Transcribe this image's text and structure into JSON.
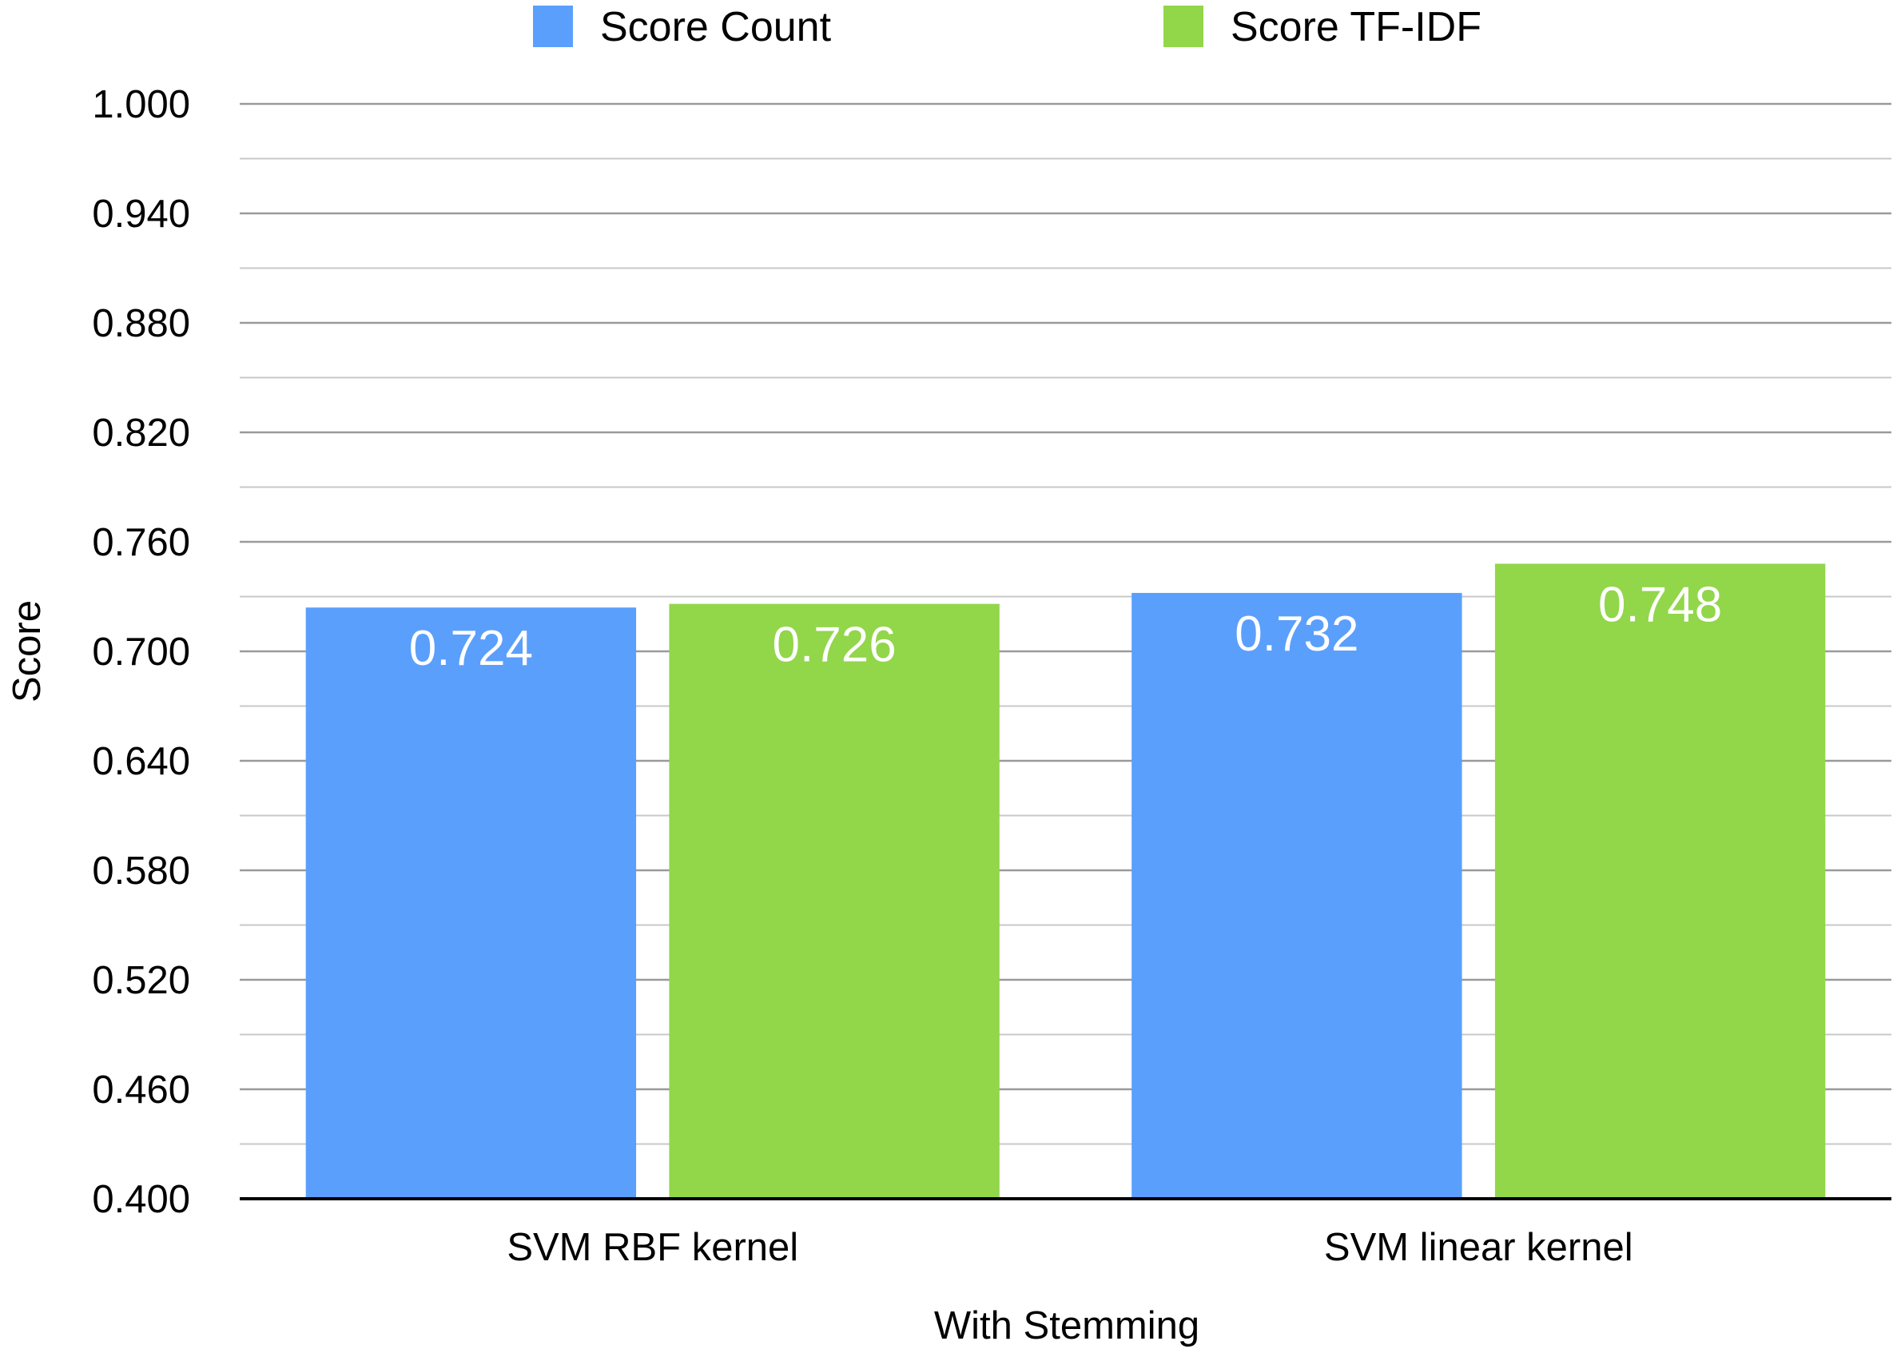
{
  "chart_data": {
    "type": "bar",
    "xlabel": "With Stemming",
    "ylabel": "Score",
    "ylim": [
      0.4,
      1.0
    ],
    "y_ticks": [
      "0.400",
      "0.460",
      "0.520",
      "0.580",
      "0.640",
      "0.700",
      "0.760",
      "0.820",
      "0.880",
      "0.940",
      "1.000"
    ],
    "grid": true,
    "legend_position": "top",
    "categories": [
      "SVM RBF kernel",
      "SVM linear kernel"
    ],
    "series": [
      {
        "name": "Score Count",
        "color": "#5b9ffd",
        "values": [
          0.724,
          0.732
        ],
        "labels": [
          "0.724",
          "0.732"
        ]
      },
      {
        "name": "Score TF-IDF",
        "color": "#92d64a",
        "values": [
          0.726,
          0.748
        ],
        "labels": [
          "0.726",
          "0.748"
        ]
      }
    ]
  }
}
